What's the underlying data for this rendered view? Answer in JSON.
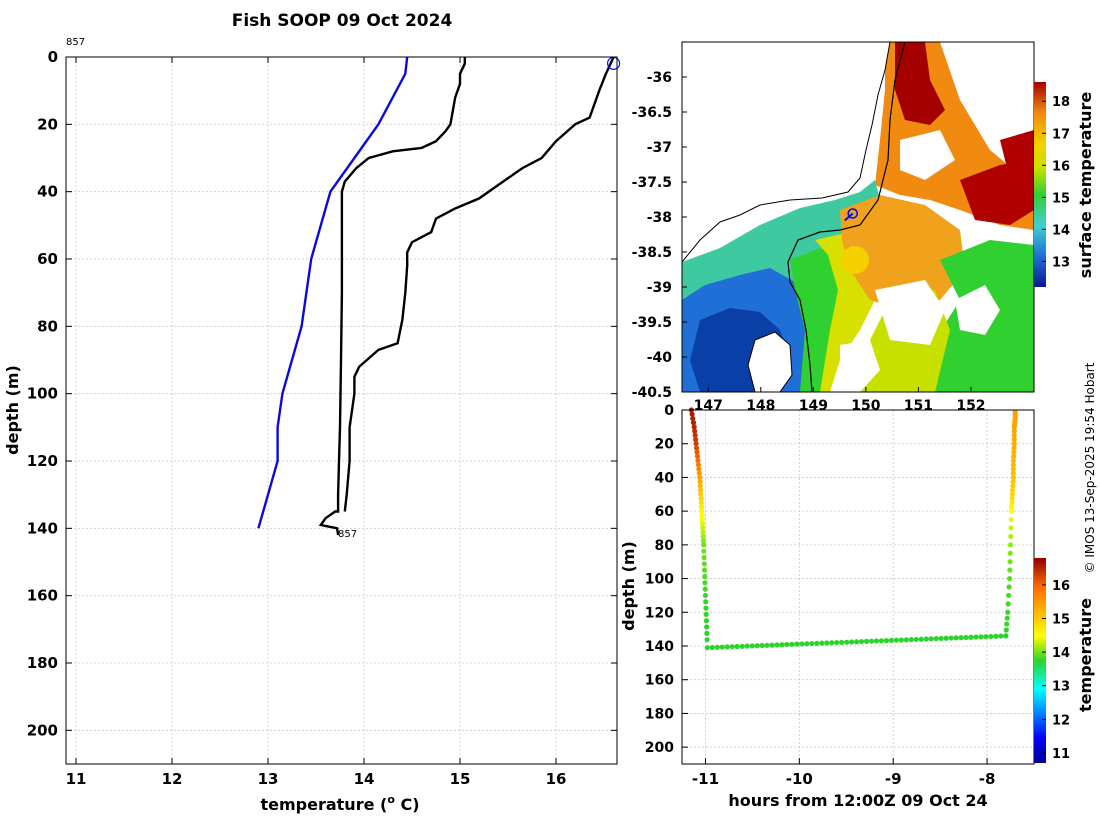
{
  "figure_title": "Fish SOOP 09 Oct 2024",
  "credit": "© IMOS 13-Sep-2025 19:54 Hobart",
  "profile_id_top": "857",
  "profile_id_bottom": "857",
  "colors": {
    "climatology": "#0a0adc",
    "profile": "#000000",
    "marker": "#0a0adc"
  },
  "chart_data": [
    {
      "id": "profile",
      "type": "line",
      "title": "Fish SOOP 09 Oct 2024",
      "xlabel": "temperature (° C)",
      "xlabel_text": "temperature (",
      "xlabel_sup": "o",
      "xlabel_end": " C)",
      "ylabel": "depth (m)",
      "xlim": [
        10.9,
        16.6
      ],
      "ylim": [
        0,
        210
      ],
      "y_inverted": true,
      "xticks": [
        11,
        12,
        13,
        14,
        15,
        16
      ],
      "yticks": [
        0,
        20,
        40,
        60,
        80,
        100,
        120,
        140,
        160,
        180,
        200
      ],
      "grid": true,
      "series": [
        {
          "name": "climatology",
          "style": "blue",
          "x": [
            14.45,
            14.43,
            14.15,
            13.9,
            13.65,
            13.45,
            13.35,
            13.25,
            13.15,
            13.1,
            13.1,
            13.0,
            12.9
          ],
          "y": [
            0,
            5,
            20,
            30,
            40,
            60,
            80,
            90,
            100,
            110,
            120,
            130,
            140
          ]
        },
        {
          "name": "profile (warm)",
          "style": "black",
          "x": [
            16.6,
            16.52,
            16.45,
            16.35,
            16.2,
            16.0,
            15.85,
            15.65,
            15.4,
            15.2,
            14.95,
            14.75,
            14.7,
            14.5,
            14.45,
            14.45,
            14.43,
            14.4,
            14.35,
            14.15,
            13.95,
            13.9,
            13.9,
            13.85,
            13.85,
            13.82,
            13.8
          ],
          "y": [
            0,
            5,
            10,
            18,
            20,
            25,
            30,
            33,
            38,
            42,
            45,
            48,
            52,
            55,
            58,
            62,
            70,
            78,
            85,
            87,
            92,
            95,
            100,
            110,
            120,
            130,
            135
          ]
        },
        {
          "name": "profile (cold)",
          "style": "black",
          "x": [
            15.05,
            15.05,
            15.0,
            15.0,
            14.95,
            14.9,
            14.85,
            14.75,
            14.6,
            14.3,
            14.05,
            13.92,
            13.8,
            13.77,
            13.77,
            13.77,
            13.76,
            13.75,
            13.74,
            13.73,
            13.73,
            13.7,
            13.6,
            13.55,
            13.72,
            13.73
          ],
          "y": [
            0,
            2,
            5,
            8,
            12,
            20,
            22,
            25,
            27,
            28,
            30,
            33,
            37,
            40,
            50,
            70,
            90,
            110,
            120,
            130,
            135,
            135,
            137,
            139,
            140,
            142
          ]
        }
      ],
      "annotation_points": [
        {
          "label": "857",
          "x": 11.0,
          "y": -4,
          "anchor": "top"
        },
        {
          "label": "857",
          "x": 13.73,
          "y": 142,
          "anchor": "bottom"
        }
      ],
      "marker": {
        "x": 16.6,
        "y": 1,
        "shape": "circle"
      }
    },
    {
      "id": "sst_map",
      "type": "heatmap",
      "colorbar_label": "surface temperature",
      "xticks": [
        "147",
        "148",
        "149",
        "150",
        "151",
        "152"
      ],
      "yticks": [
        "-36",
        "-36.5",
        "-37",
        "-37.5",
        "-38",
        "-38.5",
        "-39",
        "-39.5",
        "-40",
        "-40.5"
      ],
      "lon_range": [
        146.5,
        153.2
      ],
      "lat_range": [
        -40.5,
        -35.5
      ],
      "colorbar_ticks": [
        "13",
        "14",
        "15",
        "16",
        "17",
        "18"
      ],
      "colorbar_range": [
        12.2,
        18.6
      ],
      "marker": {
        "lon": 149.75,
        "lat": -37.95
      }
    },
    {
      "id": "track",
      "type": "scatter",
      "xlabel": "hours from 12:00Z 09 Oct 24",
      "ylabel": "depth (m)",
      "xlim": [
        -11.25,
        -7.5
      ],
      "ylim": [
        0,
        210
      ],
      "y_inverted": true,
      "xticks": [
        -11,
        -10,
        -9,
        -8
      ],
      "yticks": [
        0,
        20,
        40,
        60,
        80,
        100,
        120,
        140,
        160,
        180,
        200
      ],
      "colorbar_label": "temperature",
      "colorbar_ticks": [
        "11",
        "12",
        "13",
        "14",
        "15",
        "16"
      ],
      "colorbar_range": [
        10.7,
        16.8
      ],
      "descent": {
        "hours": [
          -11.15,
          -11.12,
          -11.1,
          -11.08,
          -11.06,
          -11.05,
          -11.04,
          -11.03,
          -11.02,
          -11.01,
          -11.0,
          -10.99,
          -10.98
        ],
        "depths": [
          0,
          10,
          20,
          30,
          40,
          50,
          60,
          70,
          80,
          95,
          110,
          125,
          140
        ],
        "temps": [
          16.6,
          16.5,
          16.3,
          15.9,
          15.4,
          15.0,
          14.6,
          14.3,
          14.0,
          13.9,
          13.8,
          13.75,
          13.73
        ]
      },
      "bottom": {
        "hour_start": -10.98,
        "hour_end": -7.8,
        "depth_start": 141,
        "depth_end": 134,
        "temp": 13.75
      },
      "ascent": {
        "hours": [
          -7.8,
          -7.78,
          -7.76,
          -7.75,
          -7.74,
          -7.73,
          -7.72,
          -7.72,
          -7.71,
          -7.71,
          -7.7,
          -7.7
        ],
        "depths": [
          134,
          120,
          100,
          80,
          60,
          50,
          40,
          30,
          20,
          10,
          5,
          0
        ],
        "temps": [
          13.75,
          13.8,
          13.9,
          14.1,
          14.5,
          14.9,
          15.1,
          15.2,
          15.3,
          15.4,
          15.4,
          15.45
        ]
      }
    }
  ]
}
